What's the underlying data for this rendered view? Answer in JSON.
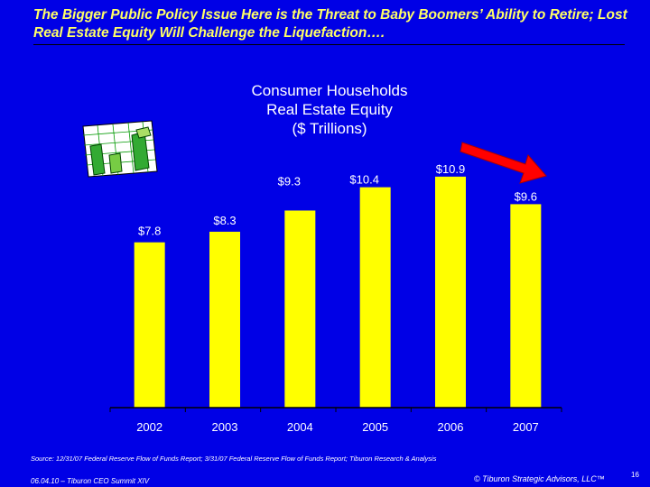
{
  "slide": {
    "title": "The Bigger Public Policy Issue Here is the Threat to Baby Boomers’ Ability to Retire; Lost Real Estate Equity Will Challenge the Liquefaction….",
    "source": "Source:  12/31/07 Federal Reserve Flow of Funds Report; 3/31/07 Federal Reserve Flow of Funds Report; Tiburon Research & Analysis",
    "footer_left": "06.04.10 – Tiburon CEO Summit XIV",
    "footer_right": "© Tiburon Strategic Advisors, LLC™",
    "page_number": "16"
  },
  "chart_data": {
    "type": "bar",
    "title_lines": [
      "Consumer Households",
      "Real Estate Equity",
      "($ Trillions)"
    ],
    "categories": [
      "2002",
      "2003",
      "2004",
      "2005",
      "2006",
      "2007"
    ],
    "values": [
      7.8,
      8.3,
      9.3,
      10.4,
      10.9,
      9.6
    ],
    "data_labels": [
      "$7.8",
      "$8.3",
      "$9.3",
      "$10.4",
      "$10.9",
      "$9.6"
    ],
    "xlabel": "",
    "ylabel": "",
    "ylim": [
      0,
      11
    ],
    "grid": false,
    "legend": "none",
    "annotations": [
      "red downward arrow pointing at 2007 decline",
      "clip-art rising bar graph icon"
    ]
  },
  "colors": {
    "background": "#0000e6",
    "bar": "#ffff00",
    "title_text": "#ffff66",
    "arrow": "#ff0000",
    "axis": "#000000",
    "label_text": "#ffffff"
  }
}
